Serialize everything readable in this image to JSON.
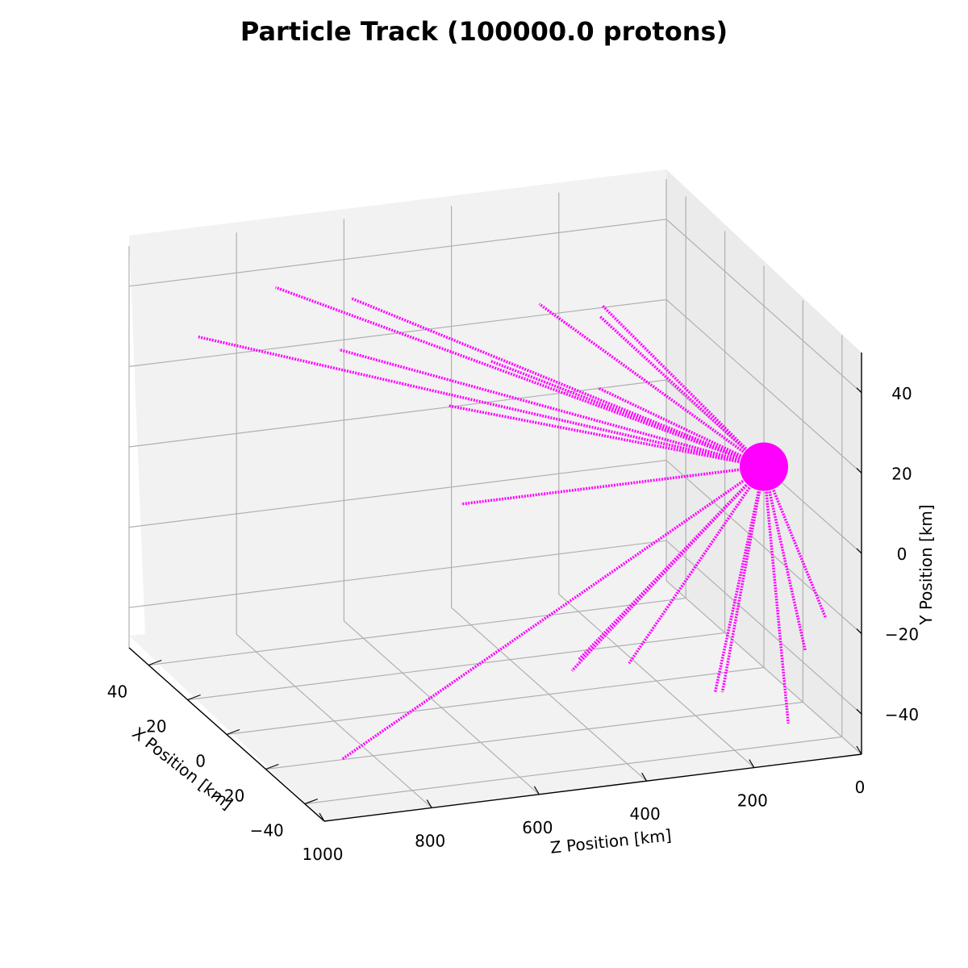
{
  "chart_data": {
    "type": "scatter",
    "projection": "3d",
    "title": "Particle Track (100000.0 protons)",
    "xlabel": "X Position [km]",
    "ylabel": "Y Position [km]",
    "zlabel": "Z Position [km]",
    "xticks": [
      "40",
      "20",
      "0",
      "−20",
      "−40"
    ],
    "yticks": [
      "40",
      "20",
      "0",
      "−20",
      "−40"
    ],
    "zticks": [
      "0",
      "200",
      "400",
      "600",
      "800",
      "1000"
    ],
    "xlim": [
      -50,
      50
    ],
    "ylim": [
      -50,
      50
    ],
    "zlim": [
      0,
      1000
    ],
    "grid": true,
    "marker_color": "#ff00ff",
    "source": {
      "x": 0,
      "y": 0,
      "z": 0
    },
    "tracks": [
      {
        "end": [
          20,
          40,
          980
        ]
      },
      {
        "end": [
          -40,
          -40,
          930
        ]
      },
      {
        "end": [
          30,
          45,
          800
        ]
      },
      {
        "end": [
          25,
          30,
          700
        ]
      },
      {
        "end": [
          30,
          40,
          660
        ]
      },
      {
        "end": [
          10,
          20,
          550
        ]
      },
      {
        "end": [
          -10,
          5,
          600
        ]
      },
      {
        "end": [
          5,
          45,
          400
        ]
      },
      {
        "end": [
          0,
          45,
          300
        ]
      },
      {
        "end": [
          -20,
          -35,
          430
        ]
      },
      {
        "end": [
          -15,
          -35,
          400
        ]
      },
      {
        "end": [
          -30,
          -30,
          360
        ]
      },
      {
        "end": [
          -40,
          -45,
          100
        ]
      },
      {
        "end": [
          -30,
          -40,
          200
        ]
      },
      {
        "end": [
          -20,
          -45,
          150
        ]
      },
      {
        "end": [
          -35,
          -30,
          50
        ]
      },
      {
        "end": [
          -40,
          -20,
          30
        ]
      },
      {
        "end": [
          30,
          10,
          200
        ]
      },
      {
        "end": [
          30,
          20,
          400
        ]
      },
      {
        "end": [
          15,
          35,
          250
        ]
      }
    ]
  }
}
